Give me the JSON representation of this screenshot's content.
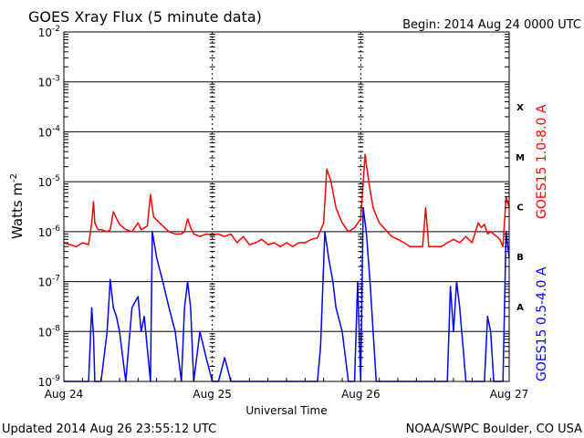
{
  "chart_data": {
    "type": "line",
    "title": "GOES Xray Flux (5 minute data)",
    "begin_label": "Begin:  2014 Aug 24 0000 UTC",
    "xlabel": "Universal Time",
    "ylabel": "Watts m",
    "ylabel_sup": "-2",
    "y_scale": "log",
    "ylim": [
      1e-09,
      0.01
    ],
    "y_ticks": [
      {
        "base": "10",
        "exp": "-9"
      },
      {
        "base": "10",
        "exp": "-8"
      },
      {
        "base": "10",
        "exp": "-7"
      },
      {
        "base": "10",
        "exp": "-6"
      },
      {
        "base": "10",
        "exp": "-5"
      },
      {
        "base": "10",
        "exp": "-4"
      },
      {
        "base": "10",
        "exp": "-3"
      },
      {
        "base": "10",
        "exp": "-2"
      }
    ],
    "x_unit": "hours since Aug 24 0000 UTC",
    "xlim": [
      0,
      72
    ],
    "x_ticks": [
      {
        "x": 0,
        "label": "Aug 24"
      },
      {
        "x": 24,
        "label": "Aug 25"
      },
      {
        "x": 48,
        "label": "Aug 26"
      },
      {
        "x": 72,
        "label": "Aug 27"
      }
    ],
    "flare_classes": [
      {
        "label": "X",
        "flux": 0.000316
      },
      {
        "label": "M",
        "flux": 3.16e-05
      },
      {
        "label": "C",
        "flux": 3.16e-06
      },
      {
        "label": "B",
        "flux": 3.16e-07
      },
      {
        "label": "A",
        "flux": 3.16e-08
      }
    ],
    "series": [
      {
        "name": "GOES15 1.0-8.0 A",
        "color": "#ff0000",
        "points": [
          [
            0,
            6e-07
          ],
          [
            1,
            5.5e-07
          ],
          [
            2,
            5e-07
          ],
          [
            3,
            6e-07
          ],
          [
            4,
            5.5e-07
          ],
          [
            4.5,
            1.5e-06
          ],
          [
            4.8,
            4e-06
          ],
          [
            5,
            1.5e-06
          ],
          [
            5.5,
            1.1e-06
          ],
          [
            6,
            1.1e-06
          ],
          [
            7,
            1e-06
          ],
          [
            7.5,
            1.1e-06
          ],
          [
            8,
            2.5e-06
          ],
          [
            9,
            1.4e-06
          ],
          [
            10,
            1.1e-06
          ],
          [
            11,
            1e-06
          ],
          [
            12,
            1.5e-06
          ],
          [
            12.5,
            1.1e-06
          ],
          [
            13.5,
            1.3e-06
          ],
          [
            14,
            5.5e-06
          ],
          [
            14.5,
            2e-06
          ],
          [
            15,
            1.7e-06
          ],
          [
            16,
            1.3e-06
          ],
          [
            17,
            1e-06
          ],
          [
            18,
            9e-07
          ],
          [
            19,
            9e-07
          ],
          [
            19.5,
            1e-06
          ],
          [
            20,
            1.8e-06
          ],
          [
            20.5,
            1.2e-06
          ],
          [
            21,
            9e-07
          ],
          [
            22,
            8e-07
          ],
          [
            23,
            9e-07
          ],
          [
            24,
            8.5e-07
          ],
          [
            25,
            9e-07
          ],
          [
            26,
            8e-07
          ],
          [
            27,
            9e-07
          ],
          [
            28,
            6e-07
          ],
          [
            29,
            8e-07
          ],
          [
            30,
            5.5e-07
          ],
          [
            31,
            6e-07
          ],
          [
            32,
            7e-07
          ],
          [
            33,
            5.5e-07
          ],
          [
            34,
            6e-07
          ],
          [
            35,
            5e-07
          ],
          [
            36,
            6e-07
          ],
          [
            37,
            5e-07
          ],
          [
            38,
            6e-07
          ],
          [
            39,
            6e-07
          ],
          [
            40,
            7e-07
          ],
          [
            41,
            7.5e-07
          ],
          [
            42,
            1.5e-06
          ],
          [
            42.5,
            1.8e-05
          ],
          [
            43.2,
            1e-05
          ],
          [
            44,
            3e-06
          ],
          [
            45,
            1.5e-06
          ],
          [
            46,
            1e-06
          ],
          [
            47,
            1.2e-06
          ],
          [
            48,
            1.8e-06
          ],
          [
            48.7,
            3.5e-05
          ],
          [
            49.3,
            1e-05
          ],
          [
            50,
            3e-06
          ],
          [
            51,
            1.5e-06
          ],
          [
            52,
            1.1e-06
          ],
          [
            53,
            8e-07
          ],
          [
            54,
            7e-07
          ],
          [
            55,
            6e-07
          ],
          [
            56,
            5e-07
          ],
          [
            57,
            5e-07
          ],
          [
            58,
            5e-07
          ],
          [
            58.5,
            3e-06
          ],
          [
            59,
            5e-07
          ],
          [
            60,
            5e-07
          ],
          [
            61,
            5e-07
          ],
          [
            62,
            6e-07
          ],
          [
            63,
            7e-07
          ],
          [
            64,
            6e-07
          ],
          [
            65,
            8e-07
          ],
          [
            66,
            6e-07
          ],
          [
            67,
            1.5e-06
          ],
          [
            67.5,
            1.2e-06
          ],
          [
            68,
            1.4e-06
          ],
          [
            68.5,
            9e-07
          ],
          [
            69,
            1e-06
          ],
          [
            70,
            8e-07
          ],
          [
            70.5,
            7e-07
          ],
          [
            71,
            5e-07
          ],
          [
            71.5,
            5e-06
          ],
          [
            72,
            3e-06
          ]
        ]
      },
      {
        "name": "GOES15 0.5-4.0 A",
        "color": "#0000ff",
        "points": [
          [
            0,
            1e-09
          ],
          [
            1,
            1e-09
          ],
          [
            2,
            1e-09
          ],
          [
            3,
            1e-09
          ],
          [
            4,
            1e-09
          ],
          [
            4.5,
            3e-08
          ],
          [
            4.8,
            8e-09
          ],
          [
            5,
            1e-09
          ],
          [
            6,
            1e-09
          ],
          [
            7,
            1e-08
          ],
          [
            7.5,
            1.1e-07
          ],
          [
            8,
            3e-08
          ],
          [
            8.5,
            2e-08
          ],
          [
            9,
            1e-08
          ],
          [
            10,
            1e-09
          ],
          [
            11,
            3e-08
          ],
          [
            12,
            5e-08
          ],
          [
            12.5,
            1e-08
          ],
          [
            13,
            2e-08
          ],
          [
            14,
            1e-09
          ],
          [
            14.3,
            1e-06
          ],
          [
            15,
            3e-07
          ],
          [
            16,
            1e-07
          ],
          [
            17,
            3e-08
          ],
          [
            18,
            1e-08
          ],
          [
            19,
            1e-09
          ],
          [
            19.5,
            3e-08
          ],
          [
            20,
            1e-07
          ],
          [
            20.5,
            3e-08
          ],
          [
            21,
            1e-09
          ],
          [
            22,
            1e-08
          ],
          [
            23,
            3e-09
          ],
          [
            24,
            1e-09
          ],
          [
            25,
            1e-09
          ],
          [
            26,
            3e-09
          ],
          [
            27,
            1e-09
          ],
          [
            28,
            1e-09
          ],
          [
            29,
            1e-09
          ],
          [
            30,
            1e-09
          ],
          [
            31,
            1e-09
          ],
          [
            32,
            1e-09
          ],
          [
            33,
            1e-09
          ],
          [
            34,
            1e-09
          ],
          [
            35,
            1e-09
          ],
          [
            36,
            1e-09
          ],
          [
            37,
            1e-09
          ],
          [
            38,
            1e-09
          ],
          [
            39,
            1e-09
          ],
          [
            40,
            1e-09
          ],
          [
            41,
            1e-09
          ],
          [
            41.5,
            5e-09
          ],
          [
            42.2,
            1e-06
          ],
          [
            42.8,
            3e-07
          ],
          [
            43.5,
            1e-07
          ],
          [
            44,
            3e-08
          ],
          [
            45,
            1e-08
          ],
          [
            46,
            1e-09
          ],
          [
            47,
            1e-09
          ],
          [
            47.5,
            1e-07
          ],
          [
            48,
            1e-09
          ],
          [
            48.4,
            3e-06
          ],
          [
            48.9,
            1e-06
          ],
          [
            49.5,
            1e-07
          ],
          [
            50,
            1e-08
          ],
          [
            50.5,
            1e-09
          ],
          [
            51,
            1e-09
          ],
          [
            52,
            1e-09
          ],
          [
            53,
            1e-09
          ],
          [
            54,
            1e-09
          ],
          [
            55,
            1e-09
          ],
          [
            56,
            1e-09
          ],
          [
            57,
            1e-09
          ],
          [
            58,
            1e-09
          ],
          [
            59,
            1e-09
          ],
          [
            60,
            1e-09
          ],
          [
            61,
            1e-09
          ],
          [
            62,
            1e-09
          ],
          [
            62.5,
            8e-08
          ],
          [
            63,
            1e-08
          ],
          [
            63.5,
            1e-07
          ],
          [
            64,
            3e-08
          ],
          [
            65,
            1e-09
          ],
          [
            66,
            1e-09
          ],
          [
            67,
            1e-09
          ],
          [
            68,
            1e-09
          ],
          [
            68.5,
            2e-08
          ],
          [
            69,
            1e-08
          ],
          [
            69.5,
            1e-09
          ],
          [
            70,
            1e-09
          ],
          [
            71,
            1e-09
          ],
          [
            71.5,
            1e-06
          ],
          [
            72,
            3e-07
          ]
        ]
      }
    ]
  },
  "footer": {
    "updated": "Updated 2014 Aug 26 23:55:12 UTC",
    "source": "NOAA/SWPC Boulder, CO USA"
  }
}
